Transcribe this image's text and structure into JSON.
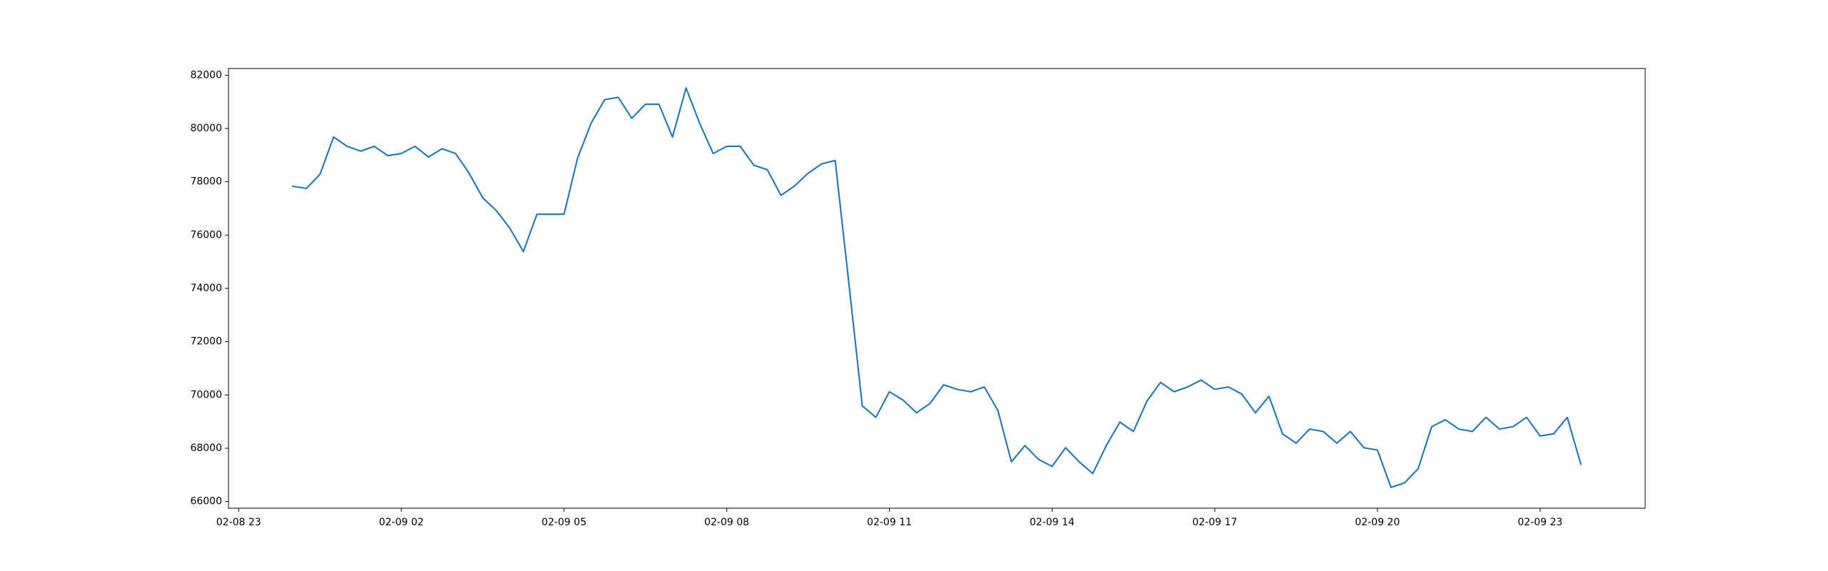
{
  "chart_data": {
    "type": "line",
    "x": [
      "02-09 00:00",
      "02-09 00:15",
      "02-09 00:30",
      "02-09 00:45",
      "02-09 01:00",
      "02-09 01:15",
      "02-09 01:30",
      "02-09 01:45",
      "02-09 02:00",
      "02-09 02:15",
      "02-09 02:30",
      "02-09 02:45",
      "02-09 03:00",
      "02-09 03:15",
      "02-09 03:30",
      "02-09 03:45",
      "02-09 04:00",
      "02-09 04:15",
      "02-09 04:30",
      "02-09 04:45",
      "02-09 05:00",
      "02-09 05:15",
      "02-09 05:30",
      "02-09 05:45",
      "02-09 06:00",
      "02-09 06:15",
      "02-09 06:30",
      "02-09 06:45",
      "02-09 07:00",
      "02-09 07:15",
      "02-09 07:30",
      "02-09 07:45",
      "02-09 08:00",
      "02-09 08:15",
      "02-09 08:30",
      "02-09 08:45",
      "02-09 09:00",
      "02-09 09:15",
      "02-09 09:30",
      "02-09 09:45",
      "02-09 10:00",
      "02-09 10:15",
      "02-09 10:30",
      "02-09 10:45",
      "02-09 11:00",
      "02-09 11:15",
      "02-09 11:30",
      "02-09 11:45",
      "02-09 12:00",
      "02-09 12:15",
      "02-09 12:30",
      "02-09 12:45",
      "02-09 13:00",
      "02-09 13:15",
      "02-09 13:30",
      "02-09 13:45",
      "02-09 14:00",
      "02-09 14:15",
      "02-09 14:30",
      "02-09 14:45",
      "02-09 15:00",
      "02-09 15:15",
      "02-09 15:30",
      "02-09 15:45",
      "02-09 16:00",
      "02-09 16:15",
      "02-09 16:30",
      "02-09 16:45",
      "02-09 17:00",
      "02-09 17:15",
      "02-09 17:30",
      "02-09 17:45",
      "02-09 18:00",
      "02-09 18:15",
      "02-09 18:30",
      "02-09 18:45",
      "02-09 19:00",
      "02-09 19:15",
      "02-09 19:30",
      "02-09 19:45",
      "02-09 20:00",
      "02-09 20:15",
      "02-09 20:30",
      "02-09 20:45",
      "02-09 21:00",
      "02-09 21:15",
      "02-09 21:30",
      "02-09 21:45",
      "02-09 22:00",
      "02-09 22:15",
      "02-09 22:30",
      "02-09 22:45",
      "02-09 23:00",
      "02-09 23:15",
      "02-09 23:30",
      "02-09 23:45"
    ],
    "values": [
      77830,
      77750,
      78280,
      79680,
      79330,
      79150,
      79330,
      78980,
      79060,
      79330,
      78930,
      79240,
      79060,
      78320,
      77400,
      76920,
      76260,
      75380,
      76780,
      76780,
      76780,
      78890,
      80200,
      81080,
      81170,
      80380,
      80910,
      80910,
      79680,
      81520,
      80200,
      79060,
      79330,
      79330,
      78620,
      78450,
      77490,
      77840,
      78320,
      78670,
      78800,
      74240,
      69590,
      69160,
      70120,
      69810,
      69330,
      69680,
      70380,
      70210,
      70120,
      70300,
      69420,
      67490,
      68100,
      67580,
      67320,
      68020,
      67490,
      67050,
      68100,
      68980,
      68630,
      69770,
      70470,
      70120,
      70300,
      70560,
      70210,
      70300,
      70030,
      69330,
      69950,
      68540,
      68190,
      68720,
      68630,
      68190,
      68630,
      68020,
      67930,
      66530,
      66700,
      67230,
      68810,
      69070,
      68720,
      68630,
      69160,
      68720,
      68810,
      69160,
      68460,
      68540,
      69160,
      67400
    ],
    "color": "#1f77b4",
    "xlim": [
      "02-08 22:48:45",
      "02-10 00:56:15"
    ],
    "xticks": [
      "02-08 23",
      "02-09 02",
      "02-09 05",
      "02-09 08",
      "02-09 11",
      "02-09 14",
      "02-09 17",
      "02-09 20",
      "02-09 23"
    ],
    "ylim": [
      65750,
      82250
    ],
    "yticks": [
      66000,
      68000,
      70000,
      72000,
      74000,
      76000,
      78000,
      80000,
      82000
    ],
    "grid": false
  }
}
